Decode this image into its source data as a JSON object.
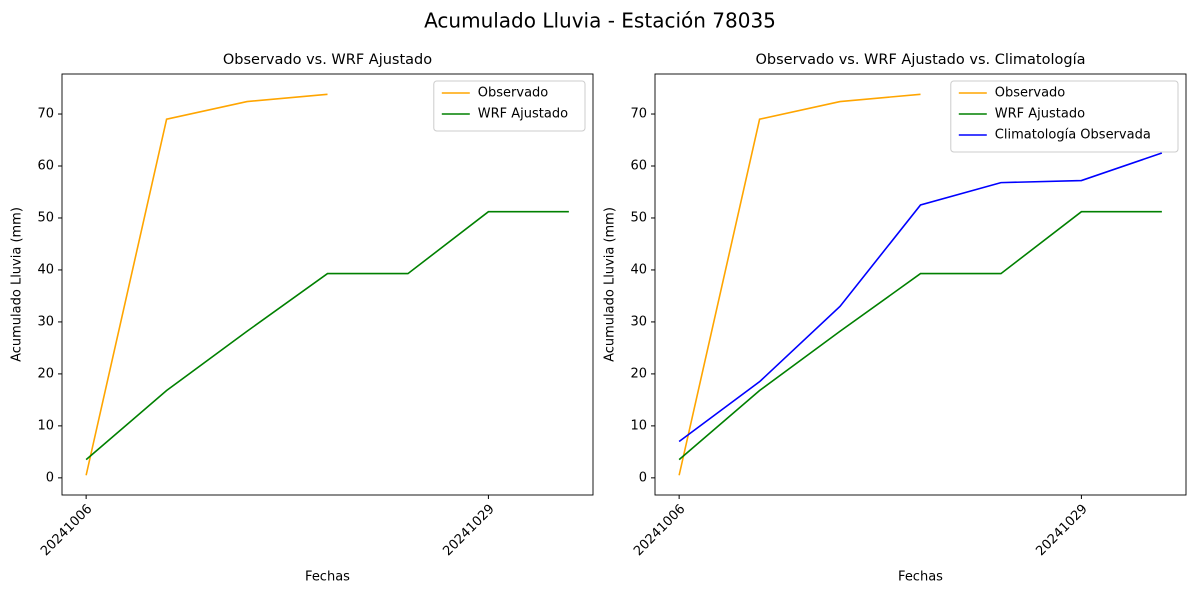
{
  "title": "Acumulado Lluvia - Estación 78035",
  "chart_data": [
    {
      "type": "line",
      "title": "Observado vs. WRF Ajustado",
      "xlabel": "Fechas",
      "ylabel": "Acumulado Lluvia (mm)",
      "categories": [
        "20241006",
        null,
        null,
        null,
        null,
        "20241029",
        null
      ],
      "series": [
        {
          "name": "Observado",
          "color": "orange",
          "values": [
            0.5,
            69,
            72.4,
            73.8,
            null,
            null,
            null
          ]
        },
        {
          "name": "WRF Ajustado",
          "color": "green",
          "values": [
            3.5,
            16.8,
            28.2,
            39.3,
            39.3,
            51.2,
            51.2
          ]
        }
      ],
      "ylim": [
        -3.3,
        77.7
      ],
      "yticks": [
        0,
        10,
        20,
        30,
        40,
        50,
        60,
        70
      ],
      "legend": "upper right"
    },
    {
      "type": "line",
      "title": "Observado vs. WRF Ajustado vs. Climatología",
      "xlabel": "Fechas",
      "ylabel": "Acumulado Lluvia (mm)",
      "categories": [
        "20241006",
        null,
        null,
        null,
        null,
        "20241029",
        null
      ],
      "series": [
        {
          "name": "Observado",
          "color": "orange",
          "values": [
            0.5,
            69,
            72.4,
            73.8,
            null,
            null,
            null
          ]
        },
        {
          "name": "WRF Ajustado",
          "color": "green",
          "values": [
            3.5,
            16.8,
            28.2,
            39.3,
            39.3,
            51.2,
            51.2
          ]
        },
        {
          "name": "Climatología Observada",
          "color": "blue",
          "values": [
            7,
            18.5,
            33,
            52.5,
            56.8,
            57.2,
            62.5
          ]
        }
      ],
      "ylim": [
        -3.3,
        77.7
      ],
      "yticks": [
        0,
        10,
        20,
        30,
        40,
        50,
        60,
        70
      ],
      "legend": "upper right"
    }
  ]
}
